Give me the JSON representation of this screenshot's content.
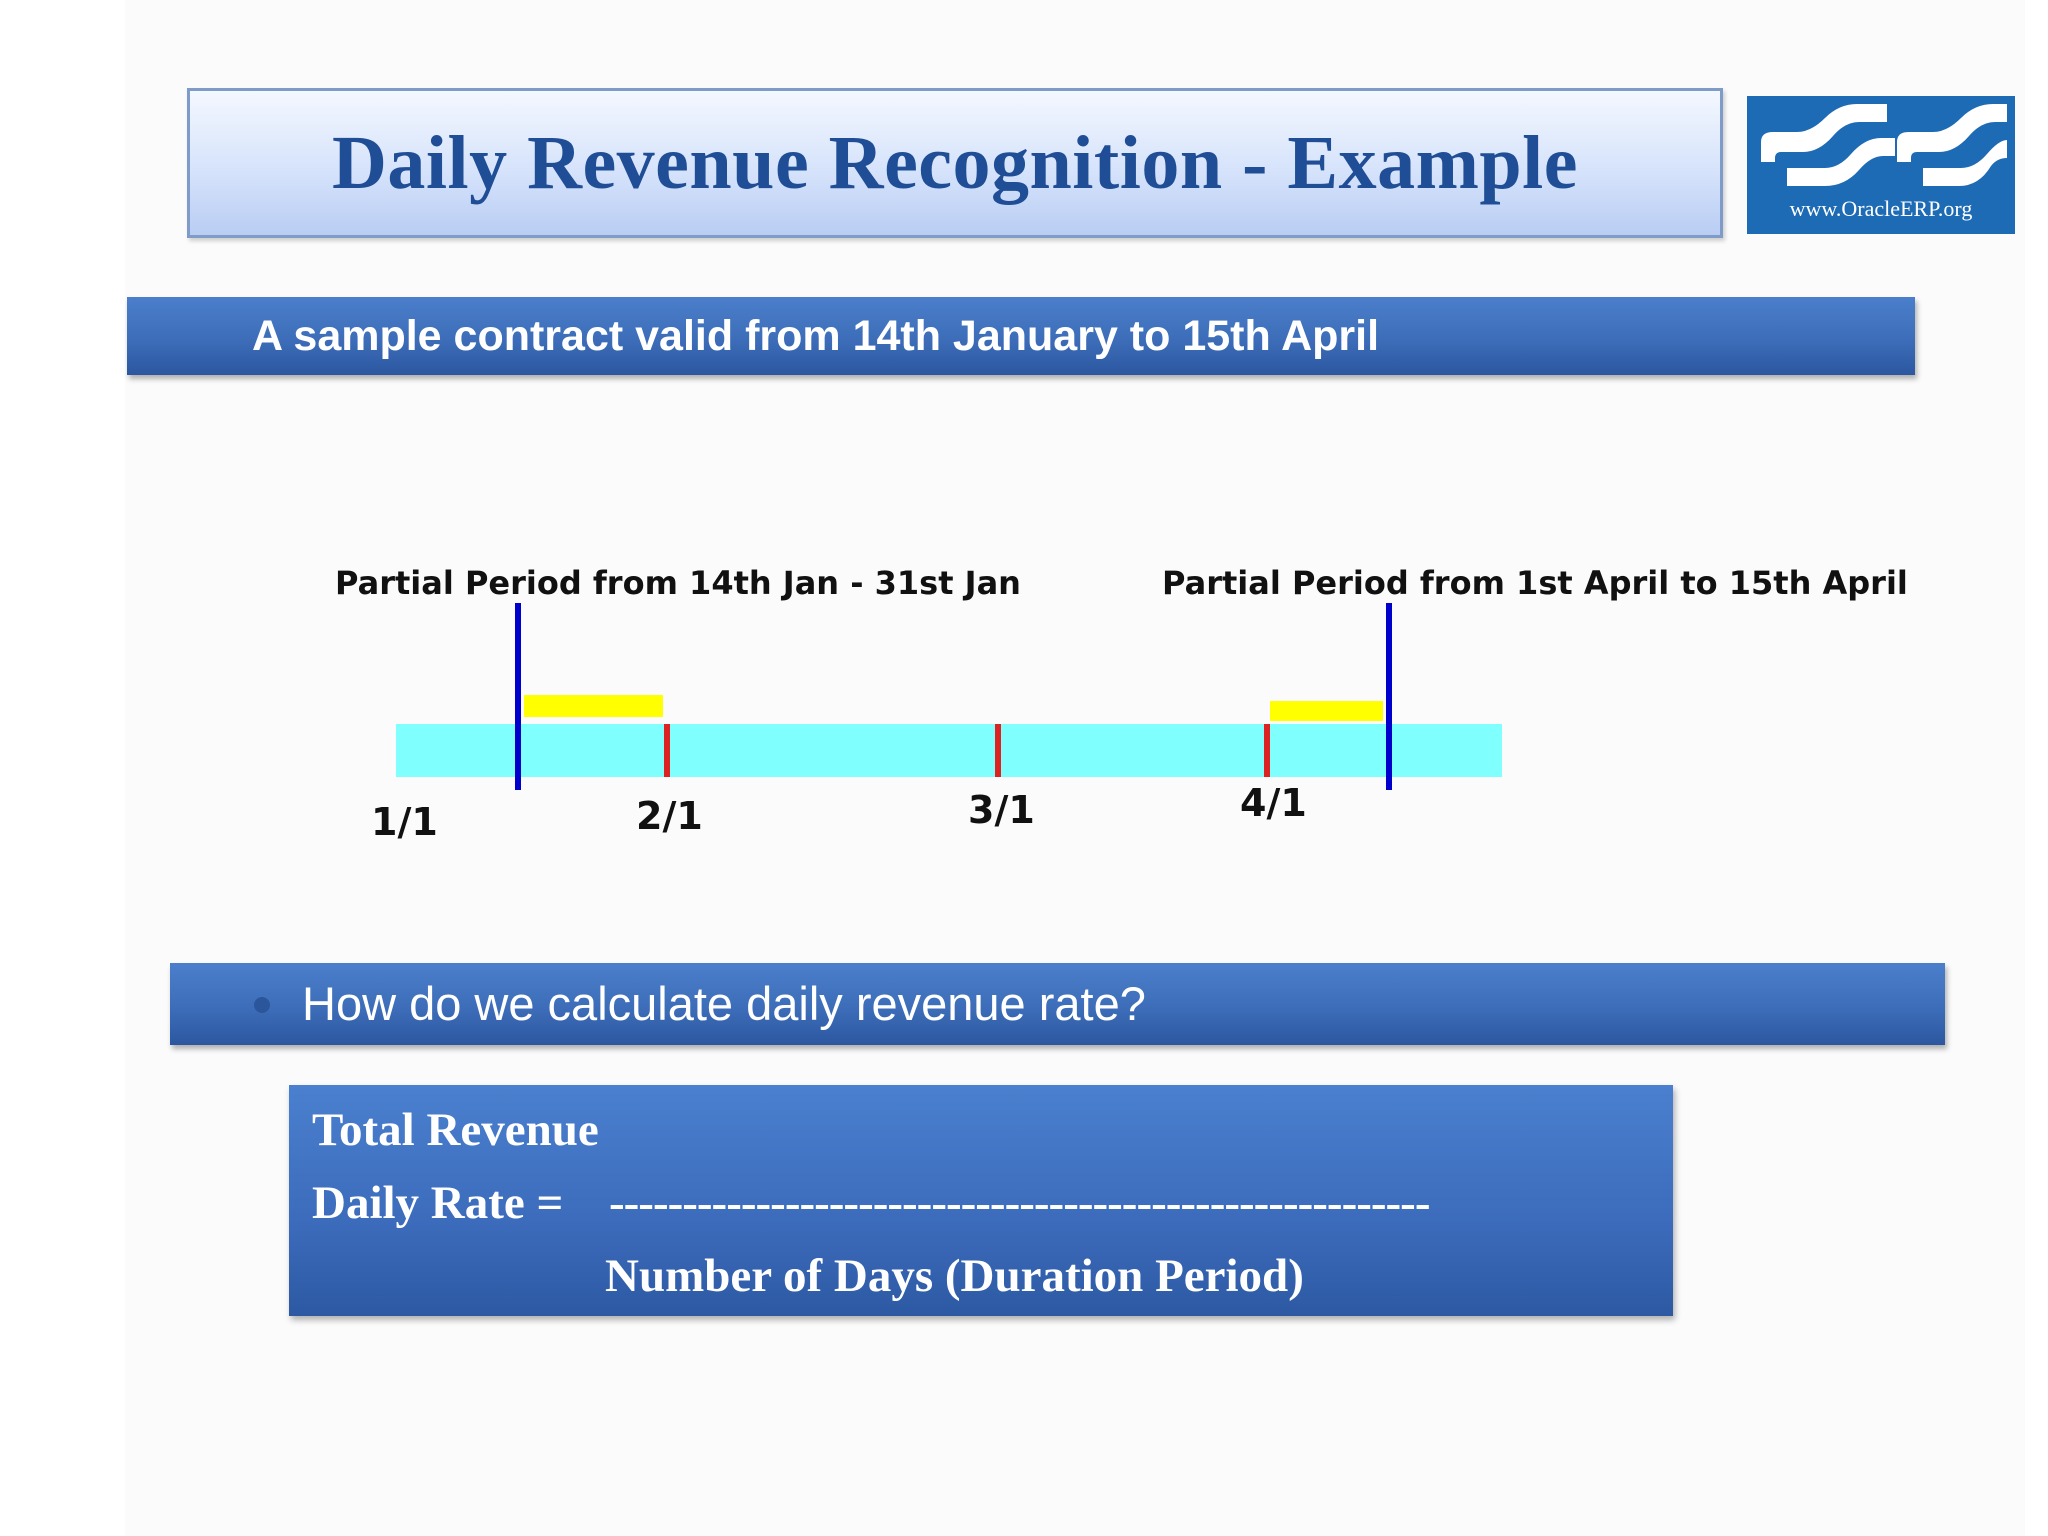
{
  "title": "Daily Revenue Recognition - Example",
  "logo": {
    "icon": "oracle-erp-logo",
    "text": "www.OracleERP.org"
  },
  "contract_banner": "A sample contract valid from 14th January to 15th April",
  "timeline": {
    "partial_start_label": "Partial Period from 14th Jan - 31st Jan",
    "partial_end_label": "Partial Period from 1st April to 15th April",
    "ticks": [
      "1/1",
      "2/1",
      "3/1",
      "4/1"
    ],
    "colors": {
      "track": "#80ffff",
      "boundary": "#0000cc",
      "month": "#dd2222",
      "partial": "#ffff00"
    }
  },
  "question": "How do we calculate daily revenue rate?",
  "formula": {
    "numerator": "Total Revenue",
    "label": "Daily Rate =",
    "divider": "--------------------------------------------------------",
    "denominator": "Number of Days  (Duration Period)"
  }
}
